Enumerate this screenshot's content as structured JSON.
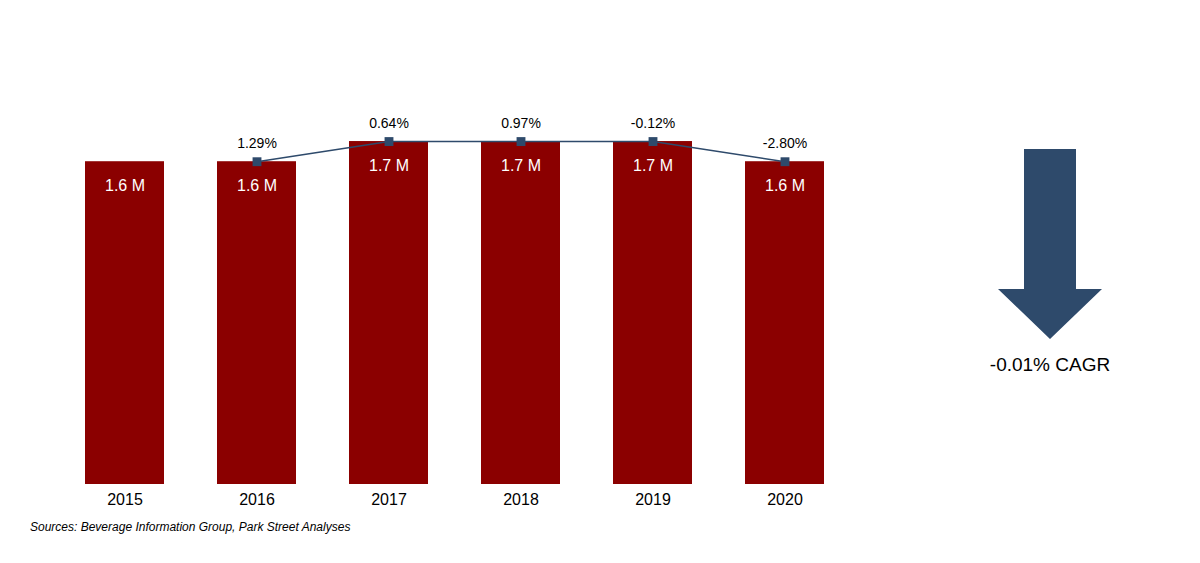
{
  "chart_data": {
    "type": "bar",
    "categories": [
      "2015",
      "2016",
      "2017",
      "2018",
      "2019",
      "2020"
    ],
    "series": [
      {
        "type": "bar",
        "color": "#8B0000",
        "values": [
          1.6,
          1.6,
          1.7,
          1.7,
          1.7,
          1.6
        ],
        "value_labels": [
          "1.6 M",
          "1.6 M",
          "1.7 M",
          "1.7 M",
          "1.7 M",
          "1.6 M"
        ]
      },
      {
        "type": "line",
        "color": "#2E4A6B",
        "marker": "square",
        "values": [
          null,
          1.6,
          1.7,
          1.7,
          1.7,
          1.6
        ]
      }
    ],
    "data_labels": true,
    "ylim": [
      0,
      2.3
    ],
    "tick_labels": "x",
    "grid": false,
    "annotations": [
      {
        "text": "1.29%",
        "x": "2016"
      },
      {
        "text": "0.64%",
        "x": "2017"
      },
      {
        "text": "0.97%",
        "x": "2018"
      },
      {
        "text": "-0.12%",
        "x": "2019"
      },
      {
        "text": "-2.80%",
        "x": "2020"
      },
      {
        "text": "-0.01% CAGR",
        "arrow": "down",
        "color": "#2E4A6B"
      }
    ],
    "caption": "Sources: Beverage Information Group, Park Street Analyses"
  }
}
